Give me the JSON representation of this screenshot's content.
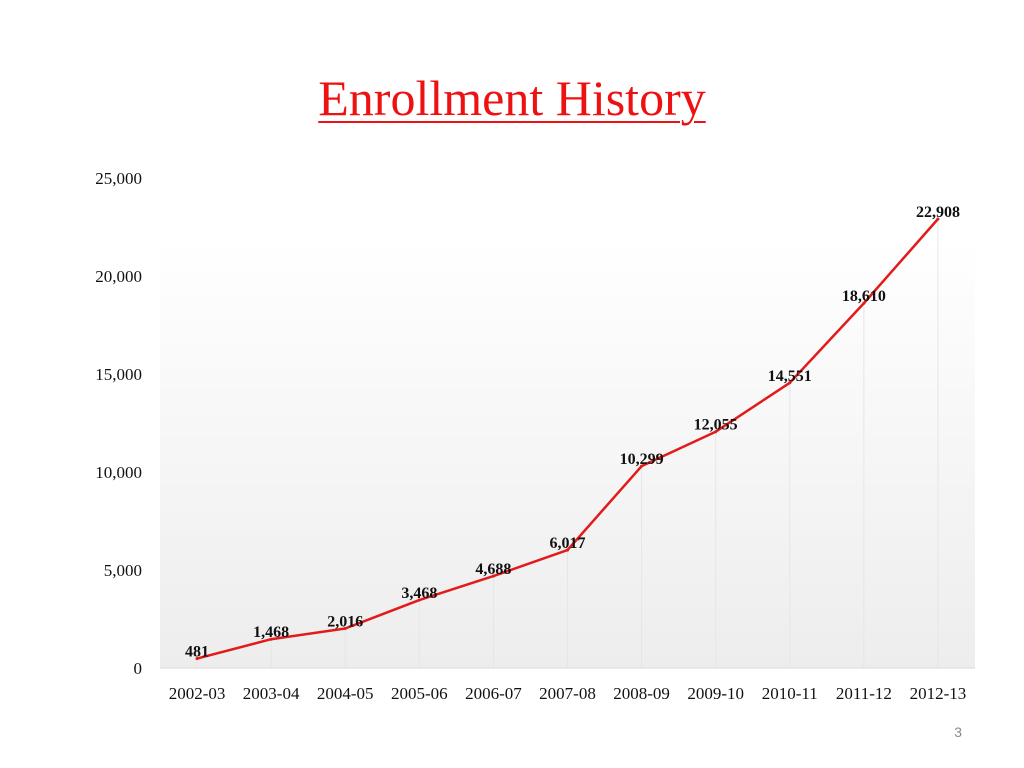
{
  "slide": {
    "title": "Enrollment History",
    "page_number": "3"
  },
  "colors": {
    "title": "#ee1111",
    "line": "#e31a1a",
    "text": "#111111",
    "axis": "#d9d9d9",
    "gridline": "#e6e6e6"
  },
  "chart_data": {
    "type": "line",
    "title": "",
    "xlabel": "",
    "ylabel": "",
    "categories": [
      "2002-03",
      "2003-04",
      "2004-05",
      "2005-06",
      "2006-07",
      "2007-08",
      "2008-09",
      "2009-10",
      "2010-11",
      "2011-12",
      "2012-13"
    ],
    "series": [
      {
        "values": [
          481,
          1468,
          2016,
          3468,
          4688,
          6017,
          10299,
          12055,
          14551,
          18610,
          22908
        ],
        "labels": [
          "481",
          "1,468",
          "2,016",
          "3,468",
          "4,688",
          "6,017",
          "10,299",
          "12,055",
          "14,551",
          "18,610",
          "22,908"
        ]
      }
    ],
    "ylim": [
      0,
      25000
    ],
    "yticks": [
      0,
      5000,
      10000,
      15000,
      20000,
      25000
    ],
    "ytick_labels": [
      "0",
      "5,000",
      "10,000",
      "15,000",
      "20,000",
      "25,000"
    ],
    "data_labels": true,
    "drop_lines": true,
    "legend": "none",
    "grid": false
  }
}
